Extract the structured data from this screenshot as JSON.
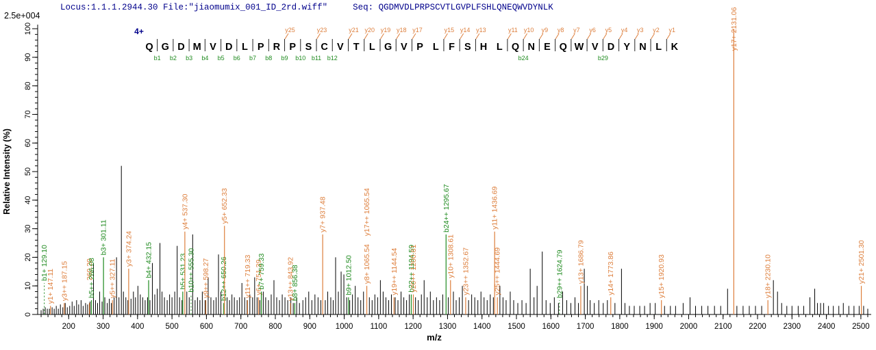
{
  "header": {
    "locus": "Locus:1.1.1.2944.30",
    "file": "File:\"jiaomumix_001_ID_2rd.wiff\"",
    "seq_label": "Seq:",
    "sequence": "QGDMVDLPRPSCVTLGVPLFSHLQNEQWVDYNLK"
  },
  "scale_note": "2.5e+004",
  "colors": {
    "y_ion": "#DD7E3B",
    "b_ion": "#1E8A1E",
    "header_text": "#00008b",
    "background_peak": "#000000",
    "axis": "#000000",
    "sequence_letters": "#000000"
  },
  "chart_data": {
    "type": "bar",
    "variant": "MS/MS centroid mass spectrum",
    "title": "",
    "xlabel": "m/z",
    "ylabel": "Relative Intensity (%)",
    "xlim": [
      110,
      2530
    ],
    "ylim": [
      0,
      100
    ],
    "grid": false,
    "x_ticks": [
      200,
      300,
      400,
      500,
      600,
      700,
      800,
      900,
      1000,
      1100,
      1200,
      1300,
      1400,
      1500,
      1600,
      1700,
      1800,
      1900,
      2000,
      2100,
      2200,
      2300,
      2400,
      2500
    ],
    "y_ticks": [
      0,
      10,
      20,
      30,
      40,
      50,
      60,
      70,
      80,
      90,
      100
    ],
    "x_minor_step": 20,
    "y_minor_step": 2,
    "intensity_scale": "2.5e+004",
    "precursor_charge": "4+",
    "peptide": {
      "residues": "QGDMVDLPRPSCVTLGVPLFSHLQNEQWVDYNLK",
      "boundaries": [
        {
          "after": 1,
          "b": "b1"
        },
        {
          "after": 2,
          "b": "b2"
        },
        {
          "after": 3,
          "b": "b3"
        },
        {
          "after": 4,
          "b": "b4"
        },
        {
          "after": 5,
          "b": "b5"
        },
        {
          "after": 6,
          "b": "b6"
        },
        {
          "after": 7,
          "b": "b7"
        },
        {
          "after": 8,
          "b": "b8"
        },
        {
          "after": 9,
          "b": "b9",
          "y": "y25"
        },
        {
          "after": 10,
          "b": "b10"
        },
        {
          "after": 11,
          "b": "b11",
          "y": "y23"
        },
        {
          "after": 12,
          "b": "b12"
        },
        {
          "after": 13,
          "y": "y21"
        },
        {
          "after": 14,
          "y": "y20"
        },
        {
          "after": 15,
          "y": "y19"
        },
        {
          "after": 16,
          "y": "y18"
        },
        {
          "after": 17,
          "y": "y17"
        },
        {
          "after": 19,
          "y": "y15"
        },
        {
          "after": 20,
          "y": "y14"
        },
        {
          "after": 21,
          "y": "y13"
        },
        {
          "after": 23,
          "y": "y11"
        },
        {
          "after": 24,
          "y": "y10",
          "b": "b24"
        },
        {
          "after": 25,
          "y": "y9"
        },
        {
          "after": 26,
          "y": "y8"
        },
        {
          "after": 27,
          "y": "y7"
        },
        {
          "after": 28,
          "y": "y6"
        },
        {
          "after": 29,
          "y": "y5",
          "b": "b29"
        },
        {
          "after": 30,
          "y": "y4"
        },
        {
          "after": 31,
          "y": "y3"
        },
        {
          "after": 32,
          "y": "y2"
        },
        {
          "after": 33,
          "y": "y1"
        }
      ]
    },
    "labeled_peaks": [
      {
        "mz": 129.1,
        "pct": 11,
        "label": "b1+ 129.10",
        "s": "b",
        "dash": true
      },
      {
        "mz": 147.11,
        "pct": 3,
        "label": "y1+ 147.11",
        "s": "y"
      },
      {
        "mz": 187.15,
        "pct": 4,
        "label": "y3++ 187.15",
        "s": "y"
      },
      {
        "mz": 260.2,
        "pct": 4,
        "label": "260.20",
        "s": "y",
        "lift": 30
      },
      {
        "mz": 266.08,
        "pct": 5,
        "label": "b5++ 266.08",
        "s": "b"
      },
      {
        "mz": 301.11,
        "pct": 20,
        "label": "b3+ 301.11",
        "s": "b"
      },
      {
        "mz": 327.11,
        "pct": 5,
        "label": "y5++ 327.11",
        "s": "y"
      },
      {
        "mz": 374.24,
        "pct": 16,
        "label": "y3+ 374.24",
        "s": "y"
      },
      {
        "mz": 432.15,
        "pct": 12,
        "label": "b4+ 432.15",
        "s": "b"
      },
      {
        "mz": 531.23,
        "pct": 8,
        "label": "b5+ 531.23",
        "s": "b"
      },
      {
        "mz": 537.3,
        "pct": 29,
        "label": "y4+ 537.30",
        "s": "y"
      },
      {
        "mz": 555.3,
        "pct": 7,
        "label": "b10++ 555.30",
        "s": "b",
        "dash": true
      },
      {
        "mz": 598.27,
        "pct": 5,
        "label": "y9++ 598.27",
        "s": "y"
      },
      {
        "mz": 650.26,
        "pct": 4,
        "label": "b12++ 650.26",
        "s": "b"
      },
      {
        "mz": 652.33,
        "pct": 31,
        "label": "y5+ 652.33",
        "s": "y"
      },
      {
        "mz": 719.33,
        "pct": 5,
        "label": "y11++ 719.33",
        "s": "y"
      },
      {
        "mz": 751.39,
        "pct": 6,
        "label": "y6+ 751.39",
        "s": "y"
      },
      {
        "mz": 759.33,
        "pct": 8,
        "label": "b7+ 759.33",
        "s": "b"
      },
      {
        "mz": 843.92,
        "pct": 4,
        "label": "y13++ 843.92",
        "s": "y"
      },
      {
        "mz": 856.38,
        "pct": 4,
        "label": "b8+ 856.38",
        "s": "b"
      },
      {
        "mz": 937.48,
        "pct": 28,
        "label": "y7+ 937.48",
        "s": "y"
      },
      {
        "mz": 1012.5,
        "pct": 6,
        "label": "b9+ 1012.50",
        "s": "b"
      },
      {
        "mz": 1065.54,
        "pct": 10,
        "label": "y8+ 1065.54",
        "s": "y"
      },
      {
        "mz": 1065.54,
        "pct": 10,
        "label": "y17++ 1065.54",
        "s": "y",
        "noline": true,
        "lift": 70
      },
      {
        "mz": 1144.54,
        "pct": 6,
        "label": "y19++ 1144.54",
        "s": "y"
      },
      {
        "mz": 1194.59,
        "pct": 7,
        "label": "b22++ 1194.59",
        "s": "b"
      },
      {
        "mz": 1200.61,
        "pct": 7,
        "label": "y20++ 1200.61",
        "s": "y"
      },
      {
        "mz": 1295.67,
        "pct": 28,
        "label": "b24++ 1295.67",
        "s": "b"
      },
      {
        "mz": 1308.61,
        "pct": 12,
        "label": "y10+ 1308.61",
        "s": "y"
      },
      {
        "mz": 1352.67,
        "pct": 6,
        "label": "y23++ 1352.67",
        "s": "y"
      },
      {
        "mz": 1436.69,
        "pct": 29,
        "label": "y11+ 1436.69",
        "s": "y"
      },
      {
        "mz": 1444.69,
        "pct": 6,
        "label": "y25++ 1444.69",
        "s": "y"
      },
      {
        "mz": 1624.79,
        "pct": 5,
        "label": "b29++ 1624.79",
        "s": "b",
        "dash": true
      },
      {
        "mz": 1686.79,
        "pct": 10,
        "label": "y13+ 1686.79",
        "s": "y"
      },
      {
        "mz": 1773.86,
        "pct": 6,
        "label": "y14+ 1773.86",
        "s": "y"
      },
      {
        "mz": 1920.93,
        "pct": 5,
        "label": "y15+ 1920.93",
        "s": "y"
      },
      {
        "mz": 2131.06,
        "pct": 100,
        "label": "y17+ 2131.06",
        "s": "y"
      },
      {
        "mz": 2230.1,
        "pct": 5,
        "label": "y18+ 2230.10",
        "s": "y"
      },
      {
        "mz": 2501.3,
        "pct": 10,
        "label": "y21+ 2501.30",
        "s": "y"
      }
    ],
    "background_peaks": [
      [
        120,
        1.5
      ],
      [
        126,
        2
      ],
      [
        132,
        2.5
      ],
      [
        138,
        2
      ],
      [
        144,
        2
      ],
      [
        152,
        2.5
      ],
      [
        158,
        2
      ],
      [
        164,
        3
      ],
      [
        170,
        2
      ],
      [
        176,
        3.5
      ],
      [
        183,
        2.5
      ],
      [
        190,
        4
      ],
      [
        196,
        2.5
      ],
      [
        203,
        3
      ],
      [
        210,
        4.5
      ],
      [
        216,
        3
      ],
      [
        223,
        5
      ],
      [
        229,
        3.5
      ],
      [
        236,
        5
      ],
      [
        242,
        3
      ],
      [
        249,
        4
      ],
      [
        255,
        3.5
      ],
      [
        262,
        4.5
      ],
      [
        272,
        18
      ],
      [
        278,
        5
      ],
      [
        284,
        4
      ],
      [
        290,
        8
      ],
      [
        297,
        4.5
      ],
      [
        305,
        6
      ],
      [
        312,
        4
      ],
      [
        318,
        5.5
      ],
      [
        324,
        4
      ],
      [
        332,
        6
      ],
      [
        339,
        20
      ],
      [
        346,
        6
      ],
      [
        353,
        52
      ],
      [
        359,
        8
      ],
      [
        366,
        6
      ],
      [
        372,
        5
      ],
      [
        381,
        5.5
      ],
      [
        388,
        8
      ],
      [
        394,
        6
      ],
      [
        401,
        10
      ],
      [
        408,
        7
      ],
      [
        415,
        6
      ],
      [
        422,
        5
      ],
      [
        429,
        6
      ],
      [
        436,
        5
      ],
      [
        443,
        18
      ],
      [
        450,
        7
      ],
      [
        457,
        9
      ],
      [
        465,
        25
      ],
      [
        471,
        8
      ],
      [
        478,
        6
      ],
      [
        486,
        5
      ],
      [
        493,
        7
      ],
      [
        500,
        6
      ],
      [
        508,
        8
      ],
      [
        515,
        24
      ],
      [
        522,
        6
      ],
      [
        529,
        5
      ],
      [
        543,
        8
      ],
      [
        550,
        6
      ],
      [
        560,
        28
      ],
      [
        567,
        5
      ],
      [
        574,
        6
      ],
      [
        581,
        5
      ],
      [
        588,
        8
      ],
      [
        596,
        5
      ],
      [
        605,
        13
      ],
      [
        613,
        6
      ],
      [
        621,
        5
      ],
      [
        628,
        6
      ],
      [
        635,
        21
      ],
      [
        642,
        8
      ],
      [
        660,
        6
      ],
      [
        667,
        5
      ],
      [
        674,
        7
      ],
      [
        681,
        6
      ],
      [
        689,
        5
      ],
      [
        696,
        6
      ],
      [
        703,
        11
      ],
      [
        711,
        6
      ],
      [
        718,
        5
      ],
      [
        726,
        7
      ],
      [
        734,
        6
      ],
      [
        740,
        13
      ],
      [
        747,
        6
      ],
      [
        755,
        5
      ],
      [
        765,
        8
      ],
      [
        772,
        6
      ],
      [
        780,
        5
      ],
      [
        788,
        7
      ],
      [
        796,
        12
      ],
      [
        804,
        6
      ],
      [
        812,
        5
      ],
      [
        820,
        7
      ],
      [
        828,
        6
      ],
      [
        836,
        5
      ],
      [
        845,
        6
      ],
      [
        852,
        4
      ],
      [
        862,
        6
      ],
      [
        870,
        4
      ],
      [
        880,
        5
      ],
      [
        888,
        6
      ],
      [
        897,
        8
      ],
      [
        906,
        5
      ],
      [
        915,
        7
      ],
      [
        924,
        6
      ],
      [
        932,
        5
      ],
      [
        945,
        5
      ],
      [
        952,
        8
      ],
      [
        961,
        6
      ],
      [
        968,
        5
      ],
      [
        975,
        20
      ],
      [
        983,
        8
      ],
      [
        991,
        15
      ],
      [
        999,
        14
      ],
      [
        1007,
        6
      ],
      [
        1016,
        5
      ],
      [
        1024,
        7
      ],
      [
        1032,
        10
      ],
      [
        1040,
        6
      ],
      [
        1048,
        5
      ],
      [
        1056,
        8
      ],
      [
        1073,
        6
      ],
      [
        1081,
        5
      ],
      [
        1089,
        7
      ],
      [
        1097,
        6
      ],
      [
        1105,
        12
      ],
      [
        1113,
        8
      ],
      [
        1121,
        6
      ],
      [
        1129,
        5
      ],
      [
        1137,
        7
      ],
      [
        1148,
        6
      ],
      [
        1156,
        5
      ],
      [
        1165,
        8
      ],
      [
        1173,
        6
      ],
      [
        1181,
        5
      ],
      [
        1189,
        7
      ],
      [
        1207,
        6
      ],
      [
        1215,
        5
      ],
      [
        1224,
        7
      ],
      [
        1232,
        12
      ],
      [
        1241,
        6
      ],
      [
        1250,
        8
      ],
      [
        1259,
        5
      ],
      [
        1268,
        6
      ],
      [
        1277,
        5
      ],
      [
        1286,
        7
      ],
      [
        1302,
        6
      ],
      [
        1317,
        8
      ],
      [
        1325,
        5
      ],
      [
        1334,
        6
      ],
      [
        1343,
        10
      ],
      [
        1361,
        5
      ],
      [
        1370,
        7
      ],
      [
        1379,
        6
      ],
      [
        1388,
        5
      ],
      [
        1397,
        8
      ],
      [
        1406,
        6
      ],
      [
        1415,
        5
      ],
      [
        1424,
        7
      ],
      [
        1433,
        6
      ],
      [
        1452,
        10
      ],
      [
        1461,
        6
      ],
      [
        1470,
        5
      ],
      [
        1482,
        8
      ],
      [
        1492,
        5
      ],
      [
        1504,
        4
      ],
      [
        1516,
        5
      ],
      [
        1528,
        4
      ],
      [
        1540,
        16
      ],
      [
        1551,
        6
      ],
      [
        1560,
        10
      ],
      [
        1575,
        22
      ],
      [
        1586,
        5
      ],
      [
        1598,
        4
      ],
      [
        1610,
        6
      ],
      [
        1622,
        4
      ],
      [
        1634,
        8
      ],
      [
        1646,
        5
      ],
      [
        1658,
        4
      ],
      [
        1670,
        6
      ],
      [
        1680,
        4
      ],
      [
        1697,
        16
      ],
      [
        1706,
        10
      ],
      [
        1714,
        5
      ],
      [
        1726,
        4
      ],
      [
        1739,
        5
      ],
      [
        1752,
        4
      ],
      [
        1764,
        5
      ],
      [
        1786,
        4
      ],
      [
        1805,
        16
      ],
      [
        1815,
        4
      ],
      [
        1828,
        3
      ],
      [
        1842,
        3
      ],
      [
        1858,
        3
      ],
      [
        1872,
        3
      ],
      [
        1888,
        4
      ],
      [
        1903,
        4
      ],
      [
        1930,
        3
      ],
      [
        1947,
        3
      ],
      [
        1962,
        3
      ],
      [
        1984,
        4
      ],
      [
        2004,
        6
      ],
      [
        2020,
        3
      ],
      [
        2038,
        3
      ],
      [
        2056,
        3
      ],
      [
        2075,
        3
      ],
      [
        2093,
        3
      ],
      [
        2113,
        9
      ],
      [
        2140,
        3
      ],
      [
        2158,
        3
      ],
      [
        2176,
        3
      ],
      [
        2194,
        3
      ],
      [
        2212,
        3
      ],
      [
        2246,
        12
      ],
      [
        2258,
        8
      ],
      [
        2270,
        4
      ],
      [
        2285,
        3
      ],
      [
        2300,
        3
      ],
      [
        2318,
        3
      ],
      [
        2334,
        3
      ],
      [
        2352,
        6
      ],
      [
        2366,
        9
      ],
      [
        2374,
        4
      ],
      [
        2383,
        4
      ],
      [
        2392,
        4
      ],
      [
        2406,
        3
      ],
      [
        2420,
        3
      ],
      [
        2436,
        3
      ],
      [
        2449,
        4
      ],
      [
        2465,
        3
      ],
      [
        2480,
        3
      ],
      [
        2495,
        3
      ],
      [
        2508,
        3
      ],
      [
        2520,
        2
      ]
    ]
  }
}
